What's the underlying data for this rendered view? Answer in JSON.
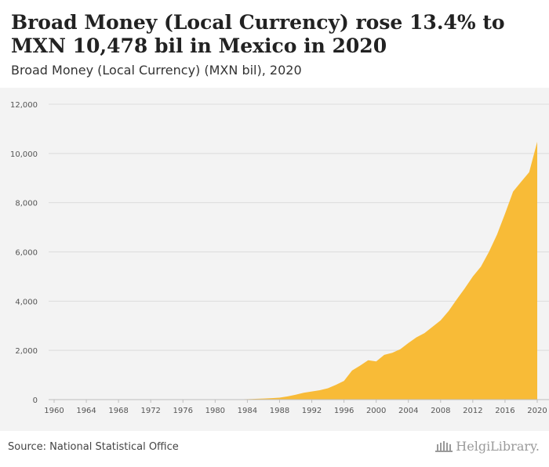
{
  "title": "Broad Money (Local Currency) rose 13.4% to MXN 10,478 bil in Mexico in 2020",
  "subtitle": "Broad Money (Local Currency) (MXN bil), 2020",
  "source": "Source: National Statistical Office",
  "logo_text": "HelgiLibrary.",
  "colors": {
    "area": "#f8bb37",
    "grid": "#dcdcdc",
    "background": "#f3f3f3"
  },
  "chart_data": {
    "type": "area",
    "title": "Broad Money (Local Currency) rose 13.4% to MXN 10,478 bil in Mexico in 2020",
    "subtitle": "Broad Money (Local Currency) (MXN bil), 2020",
    "xlabel": "",
    "ylabel": "",
    "xlim": [
      1960,
      2020
    ],
    "ylim": [
      0,
      12000
    ],
    "grid": true,
    "legend": "none",
    "x_ticks": [
      1960,
      1964,
      1968,
      1972,
      1976,
      1980,
      1984,
      1988,
      1992,
      1996,
      2000,
      2004,
      2008,
      2012,
      2016,
      2020
    ],
    "y_ticks": [
      0,
      2000,
      4000,
      6000,
      8000,
      10000,
      12000
    ],
    "y_tick_labels": [
      "0",
      "2,000",
      "4,000",
      "6,000",
      "8,000",
      "10,000",
      "12,000"
    ],
    "series": [
      {
        "x": [
          1960,
          1961,
          1962,
          1963,
          1964,
          1965,
          1966,
          1967,
          1968,
          1969,
          1970,
          1971,
          1972,
          1973,
          1974,
          1975,
          1976,
          1977,
          1978,
          1979,
          1980,
          1981,
          1982,
          1983,
          1984,
          1985,
          1986,
          1987,
          1988,
          1989,
          1990,
          1991,
          1992,
          1993,
          1994,
          1995,
          1996,
          1997,
          1998,
          1999,
          2000,
          2001,
          2002,
          2003,
          2004,
          2005,
          2006,
          2007,
          2008,
          2009,
          2010,
          2011,
          2012,
          2013,
          2014,
          2015,
          2016,
          2017,
          2018,
          2019,
          2020
        ],
        "values": [
          0,
          0,
          0,
          0,
          0,
          0,
          0,
          0,
          0,
          0,
          0,
          0,
          0,
          0,
          0,
          0,
          1,
          1,
          2,
          2,
          3,
          4,
          7,
          11,
          18,
          30,
          45,
          60,
          80,
          130,
          200,
          280,
          330,
          380,
          460,
          600,
          760,
          1180,
          1380,
          1600,
          1550,
          1820,
          1900,
          2050,
          2300,
          2530,
          2700,
          2960,
          3220,
          3600,
          4070,
          4520,
          5000,
          5400,
          6000,
          6700,
          7550,
          8450,
          8850,
          9240,
          10478
        ]
      }
    ]
  }
}
